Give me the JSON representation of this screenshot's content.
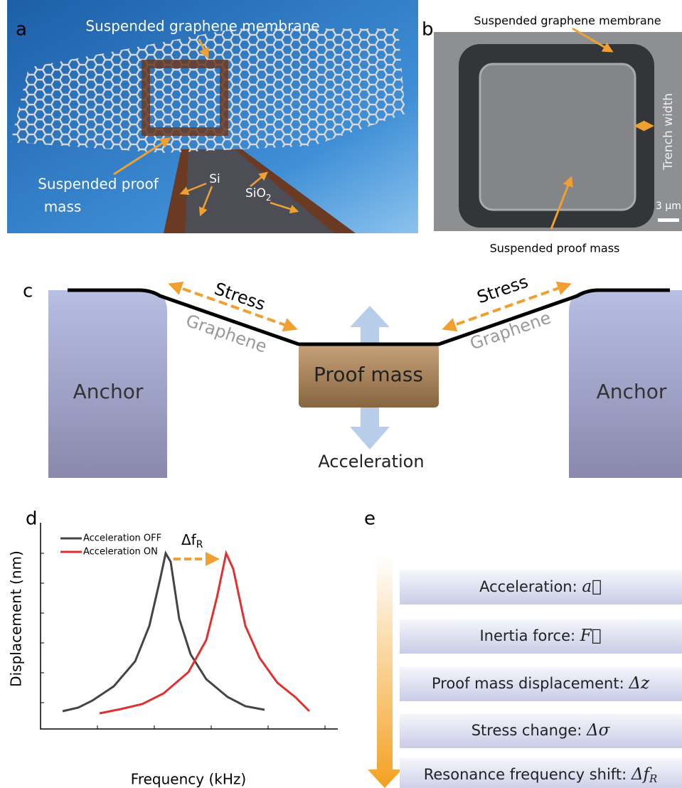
{
  "panels": {
    "a": {
      "label": "a",
      "membrane": "Suspended graphene membrane",
      "proof_mass": [
        "Suspended proof",
        "mass"
      ],
      "si": "Si",
      "sio2": {
        "text": "SiO",
        "sub": "2"
      }
    },
    "b": {
      "label": "b",
      "membrane": "Suspended graphene membrane",
      "trench": "Trench width",
      "scale": "3 μm",
      "proof_mass": "Suspended proof mass"
    },
    "c": {
      "label": "c",
      "stress": [
        "Stress",
        "Stress"
      ],
      "graphene": [
        "Graphene",
        "Graphene"
      ],
      "proof_mass": "Proof mass",
      "anchor": [
        "Anchor",
        "Anchor"
      ],
      "acceleration": "Acceleration"
    },
    "d": {
      "label": "d",
      "legend": [
        "Acceleration OFF",
        "Acceleration ON"
      ],
      "shift": {
        "text": "Δf",
        "sub": "R"
      },
      "ylabel": "Displacement (nm)",
      "xlabel": "Frequency (kHz)"
    },
    "e": {
      "label": "e",
      "steps": [
        {
          "text": "Acceleration: ",
          "symbol": "a⃗"
        },
        {
          "text": "Inertia force: ",
          "symbol": "F⃗"
        },
        {
          "text": "Proof mass displacement: ",
          "symbol": "Δz"
        },
        {
          "text": "Stress change: ",
          "symbol": "Δσ"
        },
        {
          "text": "Resonance frequency shift: ",
          "symbol": "Δf",
          "sub": "R"
        }
      ]
    }
  }
}
